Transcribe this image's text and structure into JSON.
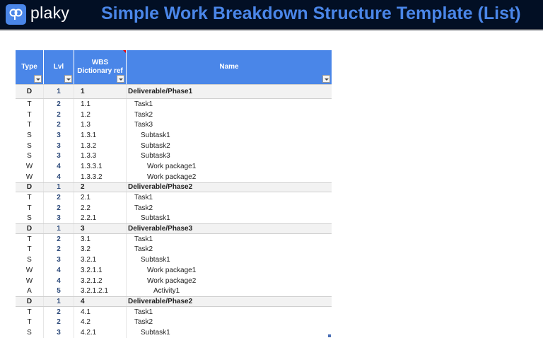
{
  "header": {
    "logo_text": "plaky",
    "title": "Simple Work Breakdown Structure Template (List)"
  },
  "colors": {
    "header_bg": "#020f24",
    "accent": "#4a86e8",
    "deliverable_row": "#f2f2f2"
  },
  "columns": [
    "Type",
    "Lvl",
    "WBS Dictionary ref",
    "Name"
  ],
  "rows": [
    {
      "type": "D",
      "lvl": "1",
      "wbs": "1",
      "name": "Deliverable/Phase1"
    },
    {
      "type": "T",
      "lvl": "2",
      "wbs": "1.1",
      "name": "Task1"
    },
    {
      "type": "T",
      "lvl": "2",
      "wbs": "1.2",
      "name": "Task2"
    },
    {
      "type": "T",
      "lvl": "2",
      "wbs": "1.3",
      "name": "Task3"
    },
    {
      "type": "S",
      "lvl": "3",
      "wbs": "1.3.1",
      "name": "Subtask1"
    },
    {
      "type": "S",
      "lvl": "3",
      "wbs": "1.3.2",
      "name": "Subtask2"
    },
    {
      "type": "S",
      "lvl": "3",
      "wbs": "1.3.3",
      "name": "Subtask3"
    },
    {
      "type": "W",
      "lvl": "4",
      "wbs": "1.3.3.1",
      "name": "Work package1"
    },
    {
      "type": "W",
      "lvl": "4",
      "wbs": "1.3.3.2",
      "name": "Work package2"
    },
    {
      "type": "D",
      "lvl": "1",
      "wbs": "2",
      "name": "Deliverable/Phase2"
    },
    {
      "type": "T",
      "lvl": "2",
      "wbs": "2.1",
      "name": "Task1"
    },
    {
      "type": "T",
      "lvl": "2",
      "wbs": "2.2",
      "name": "Task2"
    },
    {
      "type": "S",
      "lvl": "3",
      "wbs": "2.2.1",
      "name": "Subtask1"
    },
    {
      "type": "D",
      "lvl": "1",
      "wbs": "3",
      "name": "Deliverable/Phase3"
    },
    {
      "type": "T",
      "lvl": "2",
      "wbs": "3.1",
      "name": "Task1"
    },
    {
      "type": "T",
      "lvl": "2",
      "wbs": "3.2",
      "name": "Task2"
    },
    {
      "type": "S",
      "lvl": "3",
      "wbs": "3.2.1",
      "name": "Subtask1"
    },
    {
      "type": "W",
      "lvl": "4",
      "wbs": "3.2.1.1",
      "name": "Work package1"
    },
    {
      "type": "W",
      "lvl": "4",
      "wbs": "3.2.1.2",
      "name": "Work package2"
    },
    {
      "type": "A",
      "lvl": "5",
      "wbs": "3.2.1.2.1",
      "name": "Activity1"
    },
    {
      "type": "D",
      "lvl": "1",
      "wbs": "4",
      "name": "Deliverable/Phase2"
    },
    {
      "type": "T",
      "lvl": "2",
      "wbs": "4.1",
      "name": "Task1"
    },
    {
      "type": "T",
      "lvl": "2",
      "wbs": "4.2",
      "name": "Task2"
    },
    {
      "type": "S",
      "lvl": "3",
      "wbs": "4.2.1",
      "name": "Subtask1"
    }
  ]
}
